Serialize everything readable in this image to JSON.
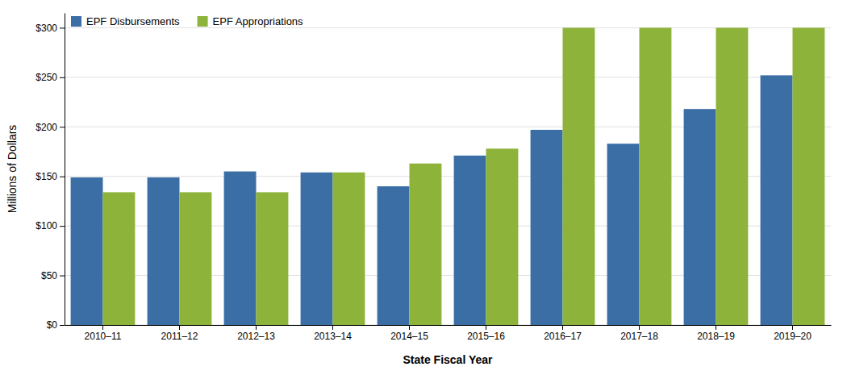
{
  "chart_data": {
    "type": "bar",
    "xlabel": "State Fiscal Year",
    "ylabel": "Millions of Dollars",
    "categories": [
      "2010–11",
      "2011–12",
      "2012–13",
      "2013–14",
      "2014–15",
      "2015–16",
      "2016–17",
      "2017–18",
      "2018–19",
      "2019–20"
    ],
    "series": [
      {
        "name": "EPF Disbursements",
        "color": "#3A6EA5",
        "values": [
          149,
          149,
          155,
          154,
          140,
          171,
          197,
          183,
          218,
          252
        ]
      },
      {
        "name": "EPF Appropriations",
        "color": "#8DB33A",
        "values": [
          134,
          134,
          134,
          154,
          163,
          178,
          300,
          300,
          300,
          300
        ]
      }
    ],
    "ylim": [
      0,
      315
    ],
    "yticks": [
      {
        "value": 0,
        "label": "$0"
      },
      {
        "value": 50,
        "label": "$50"
      },
      {
        "value": 100,
        "label": "$100"
      },
      {
        "value": 150,
        "label": "$150"
      },
      {
        "value": 200,
        "label": "$200"
      },
      {
        "value": 250,
        "label": "$250"
      },
      {
        "value": 300,
        "label": "$300"
      }
    ],
    "grid": true,
    "legend": "upper left"
  }
}
